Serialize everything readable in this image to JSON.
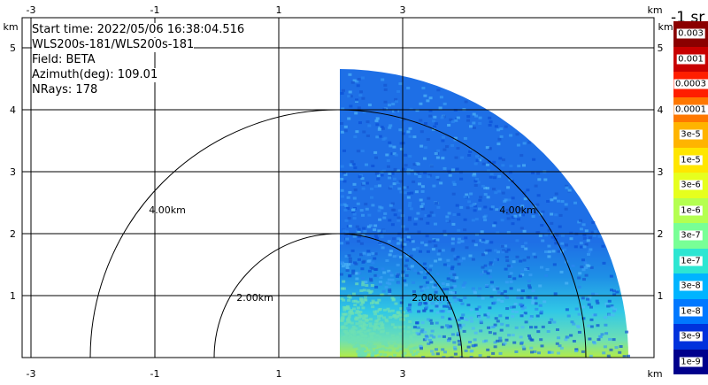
{
  "header": {
    "start_time": "Start time: 2022/05/06 16:38:04.516",
    "instrument": "WLS200s-181/WLS200s-181",
    "field": "Field: BETA",
    "azimuth": "Azimuth(deg): 109.01",
    "nrays": "NRays: 178"
  },
  "axes": {
    "unit_label": "km",
    "x_ticks": [
      "-3",
      "-1",
      "1",
      "3"
    ],
    "y_ticks": [
      "1",
      "2",
      "3",
      "4",
      "5"
    ]
  },
  "range_rings": [
    {
      "label": "2.00km",
      "radius_km": 2
    },
    {
      "label": "4.00km",
      "radius_km": 4
    }
  ],
  "legend": {
    "title": "-1 sr",
    "levels": [
      {
        "label": "0.003",
        "color": "#8b0000"
      },
      {
        "label": "0.001",
        "color": "#c80000"
      },
      {
        "label": "0.0003",
        "color": "#ff1e00"
      },
      {
        "label": "0.0001",
        "color": "#ff7800"
      },
      {
        "label": "3e-5",
        "color": "#ffb400"
      },
      {
        "label": "1e-5",
        "color": "#ffe600"
      },
      {
        "label": "3e-6",
        "color": "#e6ff1e"
      },
      {
        "label": "1e-6",
        "color": "#b4ff50"
      },
      {
        "label": "3e-7",
        "color": "#78ff96"
      },
      {
        "label": "1e-7",
        "color": "#2de6d2"
      },
      {
        "label": "3e-8",
        "color": "#00b4ff"
      },
      {
        "label": "1e-8",
        "color": "#0078ff"
      },
      {
        "label": "3e-9",
        "color": "#0032dc"
      },
      {
        "label": "1e-9",
        "color": "#00008c"
      }
    ]
  },
  "colors": {
    "grid": "#000000",
    "sector_main": "#1e6fe6",
    "sector_near_1": "#31c8e6",
    "sector_near_2": "#6ee0b4",
    "sector_near_3": "#b4ec46"
  }
}
